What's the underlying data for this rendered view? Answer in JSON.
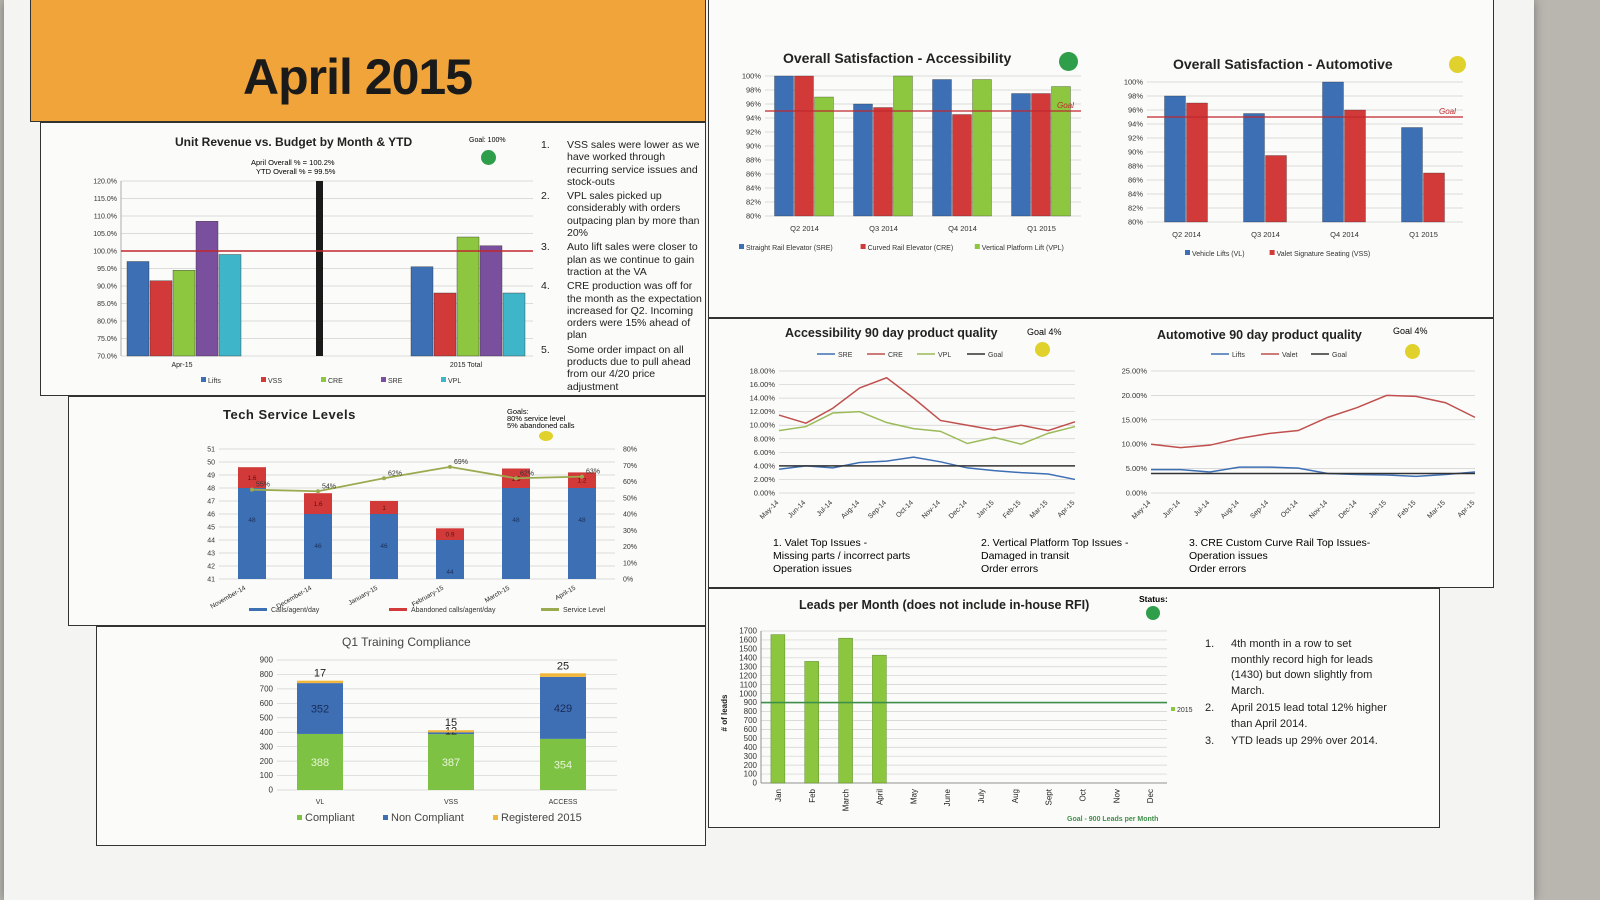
{
  "header": {
    "title": "April 2015"
  },
  "colors": {
    "header_bg": "#f0a43a",
    "blue": "#3d6fb5",
    "red": "#d23a3a",
    "green": "#8dc63f",
    "purple": "#7a4f9e",
    "teal": "#3fb5c9",
    "goal": "#c0272d",
    "status_green": "#2e9e4a",
    "status_yellow": "#e1d12c",
    "lead_green": "#8cc63f",
    "comp_green": "#7dc242",
    "noncomp_blue": "#3e6eb4",
    "reg_gold": "#f1b73c"
  },
  "unit_revenue": {
    "title": "Unit Revenue vs. Budget by Month & YTD",
    "goal_label": "Goal: 100%",
    "status": "green",
    "summary_line1": "April Overall % = 100.2%",
    "summary_line2": "YTD Overall % = 99.5%",
    "notes": [
      {
        "num": "1.",
        "text": "VSS sales were lower as we have worked through recurring service issues and stock-outs"
      },
      {
        "num": "2.",
        "text": "VPL sales picked up considerably with orders outpacing plan by more than 20%"
      },
      {
        "num": "3.",
        "text": "Auto lift sales were closer to plan as we continue to gain traction at the VA"
      },
      {
        "num": "4.",
        "text": "CRE production was off for the month as the expectation increased for Q2. Incoming orders were 15% ahead of plan"
      },
      {
        "num": "5.",
        "text": "Some order impact on all products due to pull ahead from our 4/20 price adjustment"
      }
    ]
  },
  "tech_service": {
    "title": "Tech Service Levels",
    "goals_line1": "Goals:",
    "goals_line2": "80% service level",
    "goals_line3": "5% abandoned calls",
    "status": "yellow"
  },
  "training": {
    "title": "Q1 Training Compliance"
  },
  "acc_satisfaction": {
    "title": "Overall Satisfaction - Accessibility",
    "status": "green"
  },
  "auto_satisfaction": {
    "title": "Overall Satisfaction - Automotive",
    "status": "yellow"
  },
  "acc_quality": {
    "title": "Accessibility 90 day product quality",
    "goal_label": "Goal 4%",
    "status": "yellow"
  },
  "auto_quality": {
    "title": "Automotive 90 day product quality",
    "goal_label": "Goal 4%",
    "status": "yellow"
  },
  "top_issues": [
    {
      "line1": "1.  Valet Top Issues -",
      "line2": "Missing parts / incorrect parts",
      "line3": "Operation issues"
    },
    {
      "line1": "2. Vertical Platform Top Issues -",
      "line2": "Damaged in transit",
      "line3": "Order errors"
    },
    {
      "line1": "3. CRE Custom Curve Rail Top Issues-",
      "line2": "Operation issues",
      "line3": "Order errors"
    }
  ],
  "leads": {
    "title": "Leads per Month (does not include in-house RFI)",
    "status_label": "Status:",
    "status": "green",
    "notes": [
      {
        "num": "1.",
        "text": "4th month in a row to set monthly record high for leads (1430) but down slightly from March."
      },
      {
        "num": "2.",
        "text": "April 2015 lead total 12% higher than April 2014."
      },
      {
        "num": "3.",
        "text": "YTD leads up 29% over 2014."
      }
    ]
  },
  "chart_data": [
    {
      "id": "unit_revenue",
      "type": "bar",
      "categories": [
        "Apr-15",
        "2015 Total"
      ],
      "series": [
        {
          "name": "Lifts",
          "color": "#3d6fb5",
          "values": [
            97,
            95.5
          ]
        },
        {
          "name": "VSS",
          "color": "#d23a3a",
          "values": [
            91.5,
            88
          ]
        },
        {
          "name": "CRE",
          "color": "#8dc63f",
          "values": [
            94.5,
            104
          ]
        },
        {
          "name": "SRE",
          "color": "#7a4f9e",
          "values": [
            108.5,
            101.5
          ]
        },
        {
          "name": "VPL",
          "color": "#3fb5c9",
          "values": [
            99,
            88
          ]
        }
      ],
      "ylim": [
        70,
        120
      ],
      "yticks": [
        "70.0%",
        "75.0%",
        "80.0%",
        "85.0%",
        "90.0%",
        "95.0%",
        "100.0%",
        "105.0%",
        "110.0%",
        "115.0%",
        "120.0%"
      ],
      "goal": 100
    },
    {
      "id": "tech_service",
      "type": "bar",
      "categories": [
        "November-14",
        "December-14",
        "January-15",
        "February-15",
        "March-15",
        "April-15"
      ],
      "series": [
        {
          "name": "Calls/agent/day",
          "color": "#3d6fb5",
          "values": [
            48,
            46,
            46,
            44,
            48,
            48
          ],
          "labels": [
            "48",
            "46",
            "46",
            "44",
            "48",
            "48"
          ]
        },
        {
          "name": "Abandoned calls/agent/day",
          "color": "#d23a3a",
          "values": [
            1.6,
            1.6,
            1,
            0.9,
            1.5,
            1.2
          ],
          "labels": [
            "1.6",
            "1.6",
            "1",
            "0.9",
            "1.5",
            "1.2"
          ]
        },
        {
          "name": "Service Level",
          "color": "#9aaa4f",
          "values": [
            55,
            54,
            62,
            69,
            62,
            63
          ],
          "labels": [
            "55%",
            "54%",
            "62%",
            "69%",
            "62%",
            "63%"
          ]
        }
      ],
      "ylim": [
        41,
        51
      ],
      "y2lim": [
        0,
        80
      ],
      "yticks": [
        "41",
        "42",
        "43",
        "44",
        "45",
        "46",
        "47",
        "48",
        "49",
        "50",
        "51"
      ],
      "y2ticks": [
        "0%",
        "10%",
        "20%",
        "30%",
        "40%",
        "50%",
        "60%",
        "70%",
        "80%"
      ]
    },
    {
      "id": "training",
      "type": "bar",
      "categories": [
        "VL",
        "VSS",
        "ACCESS"
      ],
      "series": [
        {
          "name": "Compliant",
          "color": "#7dc242",
          "values": [
            388,
            387,
            354
          ]
        },
        {
          "name": "Non Compliant",
          "color": "#3e6eb4",
          "values": [
            352,
            12,
            429
          ]
        },
        {
          "name": "Registered 2015",
          "color": "#f1b73c",
          "values": [
            17,
            15,
            25
          ]
        }
      ],
      "ylim": [
        0,
        900
      ],
      "yticks": [
        "0",
        "100",
        "200",
        "300",
        "400",
        "500",
        "600",
        "700",
        "800",
        "900"
      ]
    },
    {
      "id": "acc_satisfaction",
      "type": "bar",
      "categories": [
        "Q2 2014",
        "Q3 2014",
        "Q4 2014",
        "Q1 2015"
      ],
      "series": [
        {
          "name": "Straight Rail Elevator (SRE)",
          "color": "#3d6fb5",
          "values": [
            100,
            96,
            99.5,
            97.5
          ]
        },
        {
          "name": "Curved Rail Elevator (CRE)",
          "color": "#d23a3a",
          "values": [
            100,
            95.5,
            94.5,
            97.5
          ]
        },
        {
          "name": "Vertical Platform Lift (VPL)",
          "color": "#8dc63f",
          "values": [
            97,
            100,
            99.5,
            98.5
          ]
        }
      ],
      "ylim": [
        80,
        100
      ],
      "yticks": [
        "80%",
        "82%",
        "84%",
        "86%",
        "88%",
        "90%",
        "92%",
        "94%",
        "96%",
        "98%",
        "100%"
      ],
      "goal": 95,
      "goal_label": "Goal"
    },
    {
      "id": "auto_satisfaction",
      "type": "bar",
      "categories": [
        "Q2 2014",
        "Q3 2014",
        "Q4 2014",
        "Q1 2015"
      ],
      "series": [
        {
          "name": "Vehicle Lifts (VL)",
          "color": "#3d6fb5",
          "values": [
            98,
            95.5,
            100,
            93.5
          ]
        },
        {
          "name": "Valet Signature Seating (VSS)",
          "color": "#d23a3a",
          "values": [
            97,
            89.5,
            96,
            87
          ]
        }
      ],
      "ylim": [
        80,
        100
      ],
      "yticks": [
        "80%",
        "82%",
        "84%",
        "86%",
        "88%",
        "90%",
        "92%",
        "94%",
        "96%",
        "98%",
        "100%"
      ],
      "goal": 95,
      "goal_label": "Goal"
    },
    {
      "id": "acc_quality",
      "type": "line",
      "x": [
        "May-14",
        "Jun-14",
        "Jul-14",
        "Aug-14",
        "Sep-14",
        "Oct-14",
        "Nov-14",
        "Dec-14",
        "Jan-15",
        "Feb-15",
        "Mar-15",
        "Apr-15"
      ],
      "series": [
        {
          "name": "SRE",
          "color": "#3d6fb5",
          "values": [
            3.5,
            4,
            3.7,
            4.5,
            4.7,
            5.3,
            4.6,
            3.7,
            3.3,
            3,
            2.8,
            2
          ]
        },
        {
          "name": "CRE",
          "color": "#c0504d",
          "values": [
            11.5,
            10.3,
            12.5,
            15.5,
            17,
            14,
            10.7,
            10,
            9.3,
            10,
            9.2,
            10.5
          ]
        },
        {
          "name": "VPL",
          "color": "#9bbb59",
          "values": [
            9.2,
            9.8,
            11.8,
            12,
            10.4,
            9.5,
            9.1,
            7.3,
            8.2,
            7.2,
            8.8,
            9.8
          ]
        },
        {
          "name": "Goal",
          "color": "#333333",
          "values": [
            4,
            4,
            4,
            4,
            4,
            4,
            4,
            4,
            4,
            4,
            4,
            4
          ]
        }
      ],
      "ylim": [
        0,
        18
      ],
      "yticks": [
        "0.00%",
        "2.00%",
        "4.00%",
        "6.00%",
        "8.00%",
        "10.00%",
        "12.00%",
        "14.00%",
        "16.00%",
        "18.00%"
      ]
    },
    {
      "id": "auto_quality",
      "type": "line",
      "x": [
        "May-14",
        "Jun-14",
        "Jul-14",
        "Aug-14",
        "Sep-14",
        "Oct-14",
        "Nov-14",
        "Dec-14",
        "Jan-15",
        "Feb-15",
        "Mar-15",
        "Apr-15"
      ],
      "series": [
        {
          "name": "Lifts",
          "color": "#3d6fb5",
          "values": [
            4.8,
            4.8,
            4.3,
            5.3,
            5.3,
            5.1,
            4,
            3.8,
            3.7,
            3.4,
            3.8,
            4.3
          ]
        },
        {
          "name": "Valet",
          "color": "#c0504d",
          "values": [
            10,
            9.3,
            9.8,
            11.2,
            12.2,
            12.8,
            15.5,
            17.5,
            20,
            19.8,
            18.5,
            15.5
          ]
        },
        {
          "name": "Goal",
          "color": "#333333",
          "values": [
            4,
            4,
            4,
            4,
            4,
            4,
            4,
            4,
            4,
            4,
            4,
            4
          ]
        }
      ],
      "ylim": [
        0,
        25
      ],
      "yticks": [
        "0.00%",
        "5.00%",
        "10.00%",
        "15.00%",
        "20.00%",
        "25.00%"
      ]
    },
    {
      "id": "leads",
      "type": "bar",
      "categories": [
        "Jan",
        "Feb",
        "March",
        "April",
        "May",
        "June",
        "July",
        "Aug",
        "Sept",
        "Oct",
        "Nov",
        "Dec"
      ],
      "series": [
        {
          "name": "2015",
          "color": "#8cc63f",
          "values": [
            1660,
            1360,
            1620,
            1430,
            null,
            null,
            null,
            null,
            null,
            null,
            null,
            null
          ]
        }
      ],
      "goal": 900,
      "goal_label": "Goal - 900 Leads per Month",
      "ylabel": "# of leads",
      "ylim": [
        0,
        1700
      ],
      "yticks": [
        "0",
        "100",
        "200",
        "300",
        "400",
        "500",
        "600",
        "700",
        "800",
        "900",
        "1000",
        "1100",
        "1200",
        "1300",
        "1400",
        "1500",
        "1600",
        "1700"
      ]
    }
  ]
}
